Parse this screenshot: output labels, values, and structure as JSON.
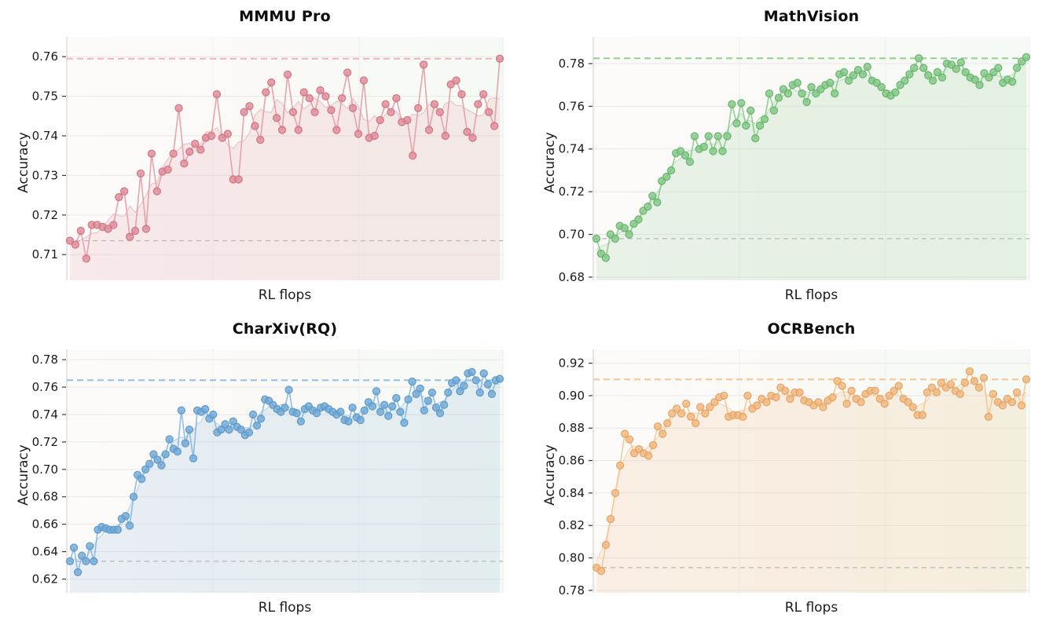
{
  "figure": {
    "background": "#ffffff",
    "grid_color": "#e8e8e8",
    "baseline_dash_color": "#bcbcbc"
  },
  "chart_data": [
    {
      "type": "line",
      "title": "MMMU Pro",
      "xlabel": "RL flops",
      "ylabel": "Accuracy",
      "legend": "none",
      "grid": true,
      "yticks": [
        0.71,
        0.72,
        0.73,
        0.74,
        0.75,
        0.76
      ],
      "ylim": [
        0.7035,
        0.765
      ],
      "best_dashed_line": 0.7595,
      "baseline_dashed_line": 0.7135,
      "colors": {
        "line": "#e29aa6",
        "marker": "#de8d9a",
        "marker_stroke": "#d06e7e",
        "ref": "#f0b3bd",
        "fill": "rgba(222,141,154,0.16)",
        "smooth": "rgba(222,141,154,0.45)"
      },
      "values": [
        0.7135,
        0.7125,
        0.716,
        0.709,
        0.7175,
        0.7175,
        0.717,
        0.7165,
        0.7175,
        0.7245,
        0.726,
        0.7145,
        0.716,
        0.7305,
        0.7165,
        0.7355,
        0.726,
        0.731,
        0.7315,
        0.7355,
        0.747,
        0.733,
        0.736,
        0.738,
        0.7365,
        0.7395,
        0.74,
        0.7505,
        0.7395,
        0.7405,
        0.729,
        0.729,
        0.746,
        0.7475,
        0.7425,
        0.739,
        0.751,
        0.7535,
        0.7445,
        0.7415,
        0.7555,
        0.746,
        0.7415,
        0.751,
        0.7495,
        0.746,
        0.7515,
        0.75,
        0.7465,
        0.7415,
        0.7495,
        0.756,
        0.747,
        0.7405,
        0.754,
        0.7395,
        0.74,
        0.744,
        0.748,
        0.746,
        0.7495,
        0.7435,
        0.744,
        0.735,
        0.747,
        0.758,
        0.7415,
        0.748,
        0.746,
        0.74,
        0.753,
        0.754,
        0.7505,
        0.741,
        0.7395,
        0.748,
        0.7505,
        0.746,
        0.7425,
        0.7595
      ]
    },
    {
      "type": "line",
      "title": "MathVision",
      "xlabel": "RL flops",
      "ylabel": "Accuracy",
      "legend": "none",
      "grid": true,
      "yticks": [
        0.68,
        0.7,
        0.72,
        0.74,
        0.76,
        0.78
      ],
      "ylim": [
        0.6785,
        0.7925
      ],
      "best_dashed_line": 0.7825,
      "baseline_dashed_line": 0.698,
      "colors": {
        "line": "#85c98a",
        "marker": "#84c887",
        "marker_stroke": "#62b168",
        "ref": "#8fd194",
        "fill": "rgba(132,200,135,0.16)",
        "smooth": "rgba(132,200,135,0.45)"
      },
      "values": [
        0.698,
        0.691,
        0.689,
        0.7,
        0.698,
        0.704,
        0.703,
        0.7,
        0.705,
        0.707,
        0.711,
        0.713,
        0.718,
        0.715,
        0.725,
        0.727,
        0.73,
        0.738,
        0.739,
        0.737,
        0.734,
        0.746,
        0.74,
        0.741,
        0.746,
        0.739,
        0.746,
        0.739,
        0.746,
        0.761,
        0.752,
        0.7615,
        0.751,
        0.758,
        0.745,
        0.751,
        0.754,
        0.766,
        0.758,
        0.764,
        0.768,
        0.766,
        0.77,
        0.771,
        0.766,
        0.762,
        0.769,
        0.766,
        0.768,
        0.77,
        0.771,
        0.766,
        0.775,
        0.776,
        0.772,
        0.7745,
        0.777,
        0.775,
        0.7785,
        0.772,
        0.771,
        0.769,
        0.766,
        0.765,
        0.7665,
        0.77,
        0.772,
        0.775,
        0.778,
        0.7825,
        0.778,
        0.7745,
        0.772,
        0.776,
        0.7735,
        0.78,
        0.7795,
        0.7775,
        0.7805,
        0.776,
        0.7735,
        0.7725,
        0.77,
        0.7755,
        0.7735,
        0.776,
        0.778,
        0.771,
        0.7725,
        0.7715,
        0.778,
        0.781,
        0.783
      ]
    },
    {
      "type": "line",
      "title": "CharXiv(RQ)",
      "xlabel": "RL flops",
      "ylabel": "Accuracy",
      "legend": "none",
      "grid": true,
      "yticks": [
        0.62,
        0.64,
        0.66,
        0.68,
        0.7,
        0.72,
        0.74,
        0.76,
        0.78
      ],
      "ylim": [
        0.61,
        0.7875
      ],
      "best_dashed_line": 0.765,
      "baseline_dashed_line": 0.633,
      "colors": {
        "line": "#85b6de",
        "marker": "#70a9d7",
        "marker_stroke": "#5896c7",
        "ref": "#8fc0e8",
        "fill": "rgba(112,169,215,0.15)",
        "smooth": "rgba(112,169,215,0.4)"
      },
      "values": [
        0.633,
        0.643,
        0.625,
        0.637,
        0.633,
        0.644,
        0.633,
        0.656,
        0.658,
        0.657,
        0.656,
        0.656,
        0.656,
        0.664,
        0.666,
        0.659,
        0.68,
        0.696,
        0.693,
        0.7,
        0.704,
        0.711,
        0.707,
        0.703,
        0.711,
        0.722,
        0.715,
        0.713,
        0.743,
        0.719,
        0.729,
        0.708,
        0.743,
        0.742,
        0.744,
        0.737,
        0.74,
        0.727,
        0.729,
        0.733,
        0.729,
        0.735,
        0.731,
        0.729,
        0.725,
        0.727,
        0.74,
        0.732,
        0.737,
        0.751,
        0.75,
        0.747,
        0.744,
        0.742,
        0.745,
        0.758,
        0.742,
        0.741,
        0.735,
        0.744,
        0.746,
        0.743,
        0.741,
        0.745,
        0.746,
        0.744,
        0.742,
        0.74,
        0.742,
        0.736,
        0.735,
        0.745,
        0.738,
        0.736,
        0.743,
        0.749,
        0.746,
        0.757,
        0.742,
        0.747,
        0.739,
        0.746,
        0.752,
        0.742,
        0.734,
        0.751,
        0.764,
        0.755,
        0.759,
        0.743,
        0.75,
        0.756,
        0.745,
        0.741,
        0.747,
        0.756,
        0.763,
        0.765,
        0.757,
        0.761,
        0.77,
        0.771,
        0.765,
        0.756,
        0.77,
        0.762,
        0.755,
        0.765,
        0.766
      ]
    },
    {
      "type": "line",
      "title": "OCRBench",
      "xlabel": "RL flops",
      "ylabel": "Accuracy",
      "legend": "none",
      "grid": true,
      "yticks": [
        0.78,
        0.8,
        0.82,
        0.84,
        0.86,
        0.88,
        0.9,
        0.92
      ],
      "ylim": [
        0.7785,
        0.9285
      ],
      "best_dashed_line": 0.91,
      "baseline_dashed_line": 0.794,
      "colors": {
        "line": "#f3c38f",
        "marker": "#f0b87f",
        "marker_stroke": "#e4a15f",
        "ref": "#f5c491",
        "fill": "rgba(240,184,127,0.18)",
        "smooth": "rgba(240,184,127,0.45)"
      },
      "values": [
        0.794,
        0.792,
        0.808,
        0.824,
        0.84,
        0.857,
        0.8765,
        0.873,
        0.8645,
        0.867,
        0.8645,
        0.863,
        0.8695,
        0.881,
        0.8765,
        0.883,
        0.889,
        0.892,
        0.889,
        0.895,
        0.887,
        0.883,
        0.893,
        0.889,
        0.893,
        0.896,
        0.899,
        0.9,
        0.887,
        0.888,
        0.888,
        0.887,
        0.9,
        0.892,
        0.894,
        0.898,
        0.896,
        0.9,
        0.899,
        0.905,
        0.903,
        0.898,
        0.902,
        0.902,
        0.897,
        0.896,
        0.894,
        0.896,
        0.893,
        0.897,
        0.899,
        0.909,
        0.906,
        0.895,
        0.903,
        0.898,
        0.896,
        0.901,
        0.903,
        0.903,
        0.898,
        0.895,
        0.9,
        0.903,
        0.906,
        0.898,
        0.896,
        0.893,
        0.888,
        0.888,
        0.902,
        0.905,
        0.902,
        0.908,
        0.905,
        0.907,
        0.903,
        0.901,
        0.908,
        0.915,
        0.909,
        0.905,
        0.911,
        0.887,
        0.901,
        0.896,
        0.894,
        0.898,
        0.896,
        0.902,
        0.894,
        0.91
      ]
    }
  ]
}
